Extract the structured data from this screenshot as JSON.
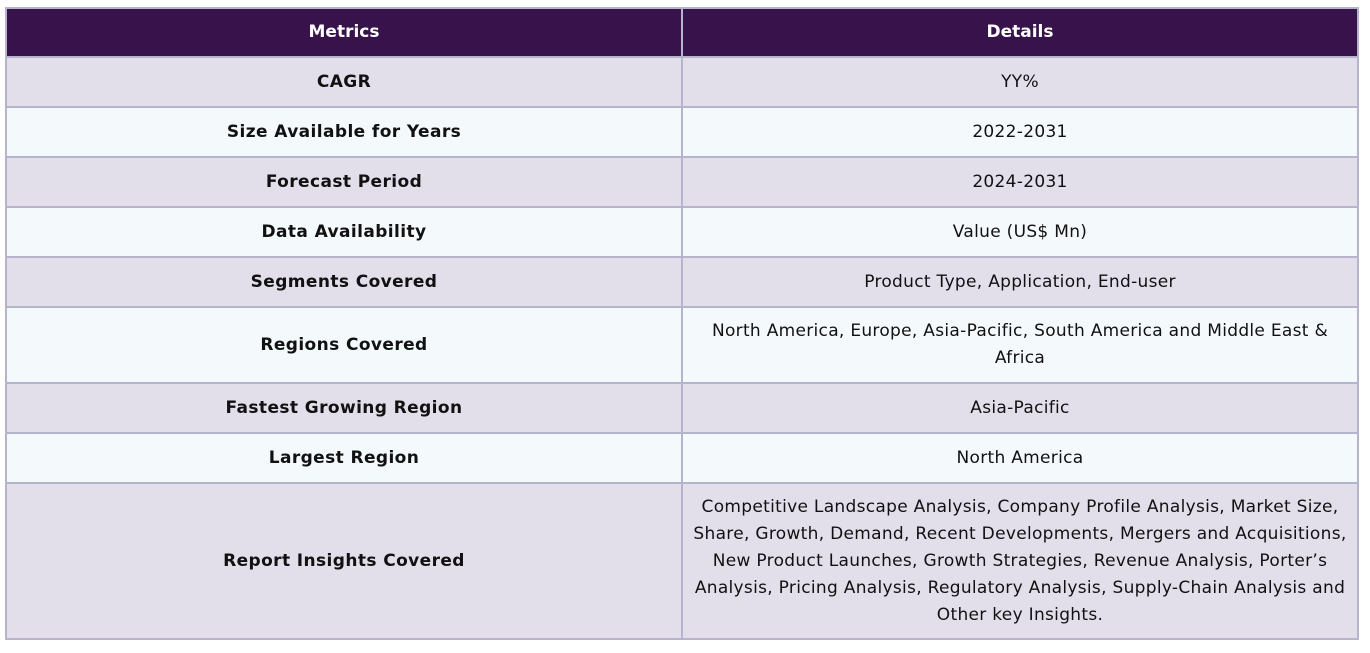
{
  "table": {
    "headers": {
      "metrics": "Metrics",
      "details": "Details"
    },
    "rows": [
      {
        "metric": "CAGR",
        "detail": "YY%"
      },
      {
        "metric": "Size Available for Years",
        "detail": "2022-2031"
      },
      {
        "metric": "Forecast Period",
        "detail": "2024-2031"
      },
      {
        "metric": "Data Availability",
        "detail": "Value (US$ Mn)"
      },
      {
        "metric": "Segments Covered",
        "detail": "Product Type, Application, End-user"
      },
      {
        "metric": "Regions Covered",
        "detail": "North America, Europe, Asia-Pacific, South America and Middle East & Africa"
      },
      {
        "metric": "Fastest Growing Region",
        "detail": "Asia-Pacific"
      },
      {
        "metric": "Largest Region",
        "detail": "North America"
      },
      {
        "metric": "Report Insights Covered",
        "detail": "Competitive Landscape Analysis, Company Profile Analysis, Market Size, Share, Growth, Demand, Recent Developments, Mergers and Acquisitions, New Product Launches, Growth Strategies, Revenue Analysis, Porter’s Analysis, Pricing Analysis, Regulatory Analysis, Supply-Chain Analysis and Other key Insights."
      }
    ]
  },
  "colors": {
    "header_bg": "#37124b",
    "row_odd_bg": "#e2dfeb",
    "row_even_bg": "#f4fafc",
    "border": "#b6b3cc"
  }
}
